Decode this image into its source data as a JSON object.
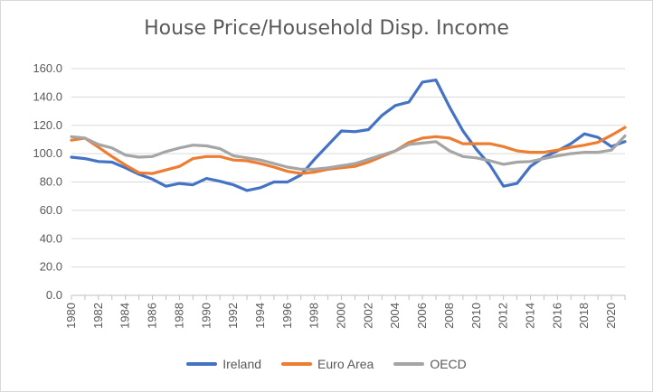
{
  "chart_data": {
    "type": "line",
    "title": "House Price/Household Disp. Income",
    "xlabel": "",
    "ylabel": "",
    "ylim": [
      0,
      160
    ],
    "yticks": [
      "0.0",
      "20.0",
      "40.0",
      "60.0",
      "80.0",
      "100.0",
      "120.0",
      "140.0",
      "160.0"
    ],
    "xtick_labels": [
      "1980",
      "1982",
      "1984",
      "1986",
      "1988",
      "1990",
      "1992",
      "1994",
      "1996",
      "1998",
      "2000",
      "2002",
      "2004",
      "2006",
      "2008",
      "2010",
      "2012",
      "2014",
      "2016",
      "2018",
      "2020"
    ],
    "x": [
      1980,
      1981,
      1982,
      1983,
      1984,
      1985,
      1986,
      1987,
      1988,
      1989,
      1990,
      1991,
      1992,
      1993,
      1994,
      1995,
      1996,
      1997,
      1998,
      1999,
      2000,
      2001,
      2002,
      2003,
      2004,
      2005,
      2006,
      2007,
      2008,
      2009,
      2010,
      2011,
      2012,
      2013,
      2014,
      2015,
      2016,
      2017,
      2018,
      2019,
      2020,
      2021
    ],
    "grid": "horizontal",
    "legend_position": "bottom",
    "series": [
      {
        "name": "Ireland",
        "color": "#4472c4",
        "values": [
          97.5,
          96.5,
          94.5,
          94,
          90,
          85.5,
          82,
          77,
          79,
          78,
          82.5,
          80.5,
          78,
          74,
          76,
          80,
          80,
          85,
          96,
          106,
          116,
          115.5,
          117,
          127,
          134,
          136.5,
          150.5,
          152,
          133,
          116,
          103,
          92,
          77,
          79,
          91,
          97.5,
          102,
          107,
          114,
          111.5,
          105,
          108.5
        ]
      },
      {
        "name": "Euro Area",
        "color": "#ed7d31",
        "values": [
          109.5,
          111,
          104.5,
          98,
          92,
          86.5,
          86,
          88.5,
          91,
          96.5,
          98,
          98,
          95.5,
          95,
          93,
          90.5,
          87.5,
          86,
          87,
          89,
          90,
          91,
          94,
          98,
          102,
          108,
          111,
          112,
          111,
          107,
          107,
          107,
          105,
          102,
          101,
          101,
          102.5,
          104.5,
          106,
          108,
          113,
          118.5
        ]
      },
      {
        "name": "OECD",
        "color": "#a5a5a5",
        "values": [
          112,
          111,
          106.5,
          104,
          99,
          97.5,
          98,
          101.5,
          104,
          106,
          105.5,
          103.5,
          98.5,
          97,
          95.5,
          93,
          90.5,
          89,
          89,
          90,
          91.5,
          93,
          96,
          99,
          102,
          106.5,
          107.5,
          108.5,
          102,
          98,
          97,
          95,
          92.5,
          94,
          94.5,
          96.5,
          98.5,
          100,
          101,
          101,
          102.5,
          112.5
        ]
      }
    ]
  }
}
